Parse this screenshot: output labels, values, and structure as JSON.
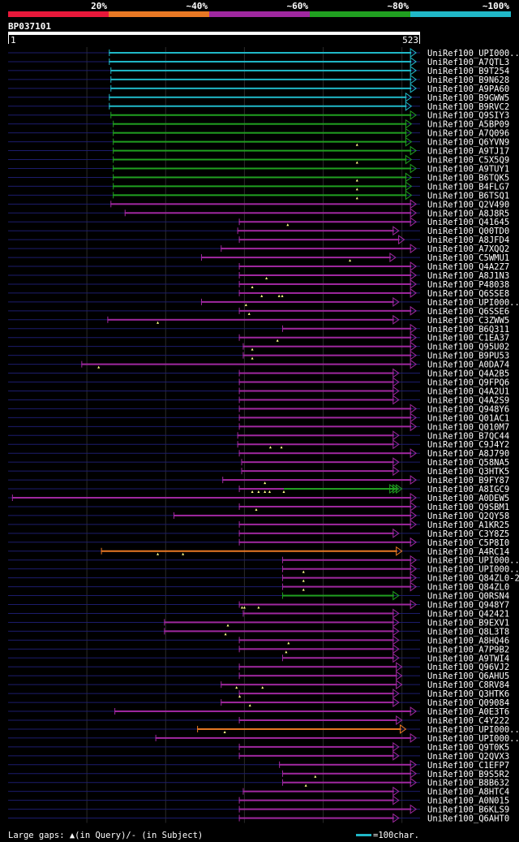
{
  "legend": {
    "bands": [
      {
        "label": "20%",
        "color": "#e8183a"
      },
      {
        "label": "~40%",
        "color": "#e87824"
      },
      {
        "label": "~60%",
        "color": "#a028a0"
      },
      {
        "label": "~80%",
        "color": "#20a020"
      },
      {
        "label": "~100%",
        "color": "#20b8c8"
      }
    ]
  },
  "query": {
    "id": "BP037101",
    "start": "1",
    "end": "523",
    "length": 523
  },
  "colors": {
    "cyan": "#20b8c8",
    "green": "#20a020",
    "purple": "#a028a0",
    "orange": "#e87824",
    "navy": "#1c1c6c",
    "grid": "#2a2a2a",
    "gapMark": "#ffff88"
  },
  "footer": {
    "gaps_text": "Large gaps: ▲(in Query)/- (in Subject)",
    "scale_text": "=100char."
  },
  "hits": [
    {
      "label": "UniRef100_UPI000..",
      "color": "cyan",
      "start": 128,
      "end": 518,
      "gaps": []
    },
    {
      "label": "UniRef100_A7QTL3",
      "color": "cyan",
      "start": 128,
      "end": 518,
      "gaps": []
    },
    {
      "label": "UniRef100_B9T254",
      "color": "cyan",
      "start": 130,
      "end": 518,
      "gaps": []
    },
    {
      "label": "UniRef100_B9N628",
      "color": "cyan",
      "start": 130,
      "end": 518,
      "gaps": []
    },
    {
      "label": "UniRef100_A9PA60",
      "color": "cyan",
      "start": 130,
      "end": 518,
      "gaps": []
    },
    {
      "label": "UniRef100_B9GWW5",
      "color": "cyan",
      "start": 128,
      "end": 512,
      "gaps": []
    },
    {
      "label": "UniRef100_B9RVC2",
      "color": "cyan",
      "start": 128,
      "end": 512,
      "gaps": []
    },
    {
      "label": "UniRef100_Q9SIY3",
      "color": "green",
      "start": 130,
      "end": 518,
      "gaps": []
    },
    {
      "label": "UniRef100_A5BP09",
      "color": "green",
      "start": 133,
      "end": 512,
      "gaps": []
    },
    {
      "label": "UniRef100_A7Q096",
      "color": "green",
      "start": 133,
      "end": 512,
      "gaps": []
    },
    {
      "label": "UniRef100_Q6YVN9",
      "color": "green",
      "start": 133,
      "end": 512,
      "gaps": [
        443
      ]
    },
    {
      "label": "UniRef100_A9TJ17",
      "color": "green",
      "start": 133,
      "end": 518,
      "gaps": []
    },
    {
      "label": "UniRef100_C5X5Q9",
      "color": "green",
      "start": 133,
      "end": 512,
      "gaps": [
        443
      ]
    },
    {
      "label": "UniRef100_A9TUY1",
      "color": "green",
      "start": 133,
      "end": 518,
      "gaps": []
    },
    {
      "label": "UniRef100_B6TQK5",
      "color": "green",
      "start": 133,
      "end": 512,
      "gaps": [
        443
      ]
    },
    {
      "label": "UniRef100_B4FLG7",
      "color": "green",
      "start": 133,
      "end": 512,
      "gaps": [
        443
      ]
    },
    {
      "label": "UniRef100_B6TSQ1",
      "color": "green",
      "start": 133,
      "end": 512,
      "gaps": [
        443
      ]
    },
    {
      "label": "UniRef100_Q2V490",
      "color": "purple",
      "start": 130,
      "end": 518,
      "gaps": []
    },
    {
      "label": "UniRef100_A8J8R5",
      "color": "purple",
      "start": 148,
      "end": 518,
      "gaps": []
    },
    {
      "label": "UniRef100_Q41645",
      "color": "purple",
      "start": 293,
      "end": 518,
      "gaps": [
        355
      ]
    },
    {
      "label": "UniRef100_Q00TD0",
      "color": "purple",
      "start": 291,
      "end": 496,
      "gaps": []
    },
    {
      "label": "UniRef100_A8JFD4",
      "color": "purple",
      "start": 293,
      "end": 503,
      "gaps": []
    },
    {
      "label": "UniRef100_A7XQQ2",
      "color": "purple",
      "start": 270,
      "end": 518,
      "gaps": []
    },
    {
      "label": "UniRef100_C5WMU1",
      "color": "purple",
      "start": 245,
      "end": 492,
      "gaps": [
        434
      ]
    },
    {
      "label": "UniRef100_Q4A2Z7",
      "color": "purple",
      "start": 293,
      "end": 518,
      "gaps": []
    },
    {
      "label": "UniRef100_A8J1N3",
      "color": "purple",
      "start": 293,
      "end": 518,
      "gaps": [
        328
      ]
    },
    {
      "label": "UniRef100_P48038",
      "color": "purple",
      "start": 293,
      "end": 518,
      "gaps": [
        310
      ]
    },
    {
      "label": "UniRef100_Q6SSE8",
      "color": "purple",
      "start": 293,
      "end": 518,
      "gaps": [
        322,
        344,
        348
      ]
    },
    {
      "label": "UniRef100_UPI000..",
      "color": "purple",
      "start": 245,
      "end": 496,
      "gaps": [
        302
      ]
    },
    {
      "label": "UniRef100_Q6SSE6",
      "color": "purple",
      "start": 293,
      "end": 518,
      "gaps": [
        306
      ]
    },
    {
      "label": "UniRef100_C3ZWW5",
      "color": "purple",
      "start": 126,
      "end": 496,
      "gaps": [
        190
      ]
    },
    {
      "label": "UniRef100_B6Q311",
      "color": "purple",
      "start": 348,
      "end": 518,
      "gaps": []
    },
    {
      "label": "UniRef100_C1EA37",
      "color": "purple",
      "start": 293,
      "end": 518,
      "gaps": [
        342
      ]
    },
    {
      "label": "UniRef100_Q95U02",
      "color": "purple",
      "start": 298,
      "end": 518,
      "gaps": [
        310
      ]
    },
    {
      "label": "UniRef100_B9PU53",
      "color": "purple",
      "start": 298,
      "end": 518,
      "gaps": [
        310
      ]
    },
    {
      "label": "UniRef100_A0DA74",
      "color": "purple",
      "start": 93,
      "end": 518,
      "gaps": [
        115
      ]
    },
    {
      "label": "UniRef100_Q4A2B5",
      "color": "purple",
      "start": 293,
      "end": 496,
      "gaps": []
    },
    {
      "label": "UniRef100_Q9FPQ6",
      "color": "purple",
      "start": 293,
      "end": 496,
      "gaps": []
    },
    {
      "label": "UniRef100_Q4A2U1",
      "color": "purple",
      "start": 293,
      "end": 496,
      "gaps": []
    },
    {
      "label": "UniRef100_Q4A2S9",
      "color": "purple",
      "start": 293,
      "end": 496,
      "gaps": []
    },
    {
      "label": "UniRef100_Q948Y6",
      "color": "purple",
      "start": 293,
      "end": 518,
      "gaps": []
    },
    {
      "label": "UniRef100_Q01AC1",
      "color": "purple",
      "start": 293,
      "end": 518,
      "gaps": []
    },
    {
      "label": "UniRef100_Q010M7",
      "color": "purple",
      "start": 293,
      "end": 518,
      "gaps": []
    },
    {
      "label": "UniRef100_B7QC44",
      "color": "purple",
      "start": 291,
      "end": 496,
      "gaps": []
    },
    {
      "label": "UniRef100_C9J4Y2",
      "color": "purple",
      "start": 291,
      "end": 496,
      "gaps": [
        333,
        347
      ]
    },
    {
      "label": "UniRef100_A8J790",
      "color": "purple",
      "start": 293,
      "end": 518,
      "gaps": []
    },
    {
      "label": "UniRef100_Q58NA5",
      "color": "purple",
      "start": 296,
      "end": 496,
      "gaps": []
    },
    {
      "label": "UniRef100_Q3HTK5",
      "color": "purple",
      "start": 296,
      "end": 496,
      "gaps": []
    },
    {
      "label": "UniRef100_B9FY87",
      "color": "purple",
      "start": 272,
      "end": 518,
      "gaps": [
        326
      ]
    },
    {
      "label": "UniRef100_A8IGC9",
      "color": "purple",
      "start": 293,
      "end": 500,
      "gaps": [
        310,
        318,
        326,
        332,
        350
      ],
      "segments": [
        {
          "color": "green",
          "start": 350,
          "end": 500
        }
      ],
      "extraArrows": 2
    },
    {
      "label": "UniRef100_A0DEW5",
      "color": "purple",
      "start": 5,
      "end": 518,
      "gaps": []
    },
    {
      "label": "UniRef100_Q9SBM1",
      "color": "purple",
      "start": 293,
      "end": 518,
      "gaps": [
        315
      ]
    },
    {
      "label": "UniRef100_Q2QY58",
      "color": "purple",
      "start": 210,
      "end": 518,
      "gaps": []
    },
    {
      "label": "UniRef100_A1KR25",
      "color": "purple",
      "start": 293,
      "end": 518,
      "gaps": []
    },
    {
      "label": "UniRef100_C3Y8Z5",
      "color": "purple",
      "start": 293,
      "end": 496,
      "gaps": []
    },
    {
      "label": "UniRef100_C5P8I0",
      "color": "purple",
      "start": 293,
      "end": 518,
      "gaps": []
    },
    {
      "label": "UniRef100_A4RC14",
      "color": "orange",
      "start": 118,
      "end": 500,
      "gaps": [
        190,
        222
      ]
    },
    {
      "label": "UniRef100_UPI000..",
      "color": "purple",
      "start": 348,
      "end": 518,
      "gaps": []
    },
    {
      "label": "UniRef100_UPI000..",
      "color": "purple",
      "start": 348,
      "end": 518,
      "gaps": [
        375
      ]
    },
    {
      "label": "UniRef100_Q84ZL0-2",
      "color": "purple",
      "start": 348,
      "end": 518,
      "gaps": [
        375
      ]
    },
    {
      "label": "UniRef100_Q84ZL0",
      "color": "purple",
      "start": 348,
      "end": 518,
      "gaps": [
        375
      ]
    },
    {
      "label": "UniRef100_Q0RSN4",
      "color": "green",
      "start": 348,
      "end": 496,
      "gaps": []
    },
    {
      "label": "UniRef100_Q948Y7",
      "color": "purple",
      "start": 293,
      "end": 518,
      "gaps": [
        297,
        300,
        318
      ]
    },
    {
      "label": "UniRef100_Q42421",
      "color": "purple",
      "start": 298,
      "end": 496,
      "gaps": []
    },
    {
      "label": "UniRef100_B9EXV1",
      "color": "purple",
      "start": 198,
      "end": 496,
      "gaps": [
        279
      ]
    },
    {
      "label": "UniRef100_Q8L3T8",
      "color": "purple",
      "start": 198,
      "end": 496,
      "gaps": [
        276
      ]
    },
    {
      "label": "UniRef100_A8HQ46",
      "color": "purple",
      "start": 293,
      "end": 496,
      "gaps": [
        356
      ]
    },
    {
      "label": "UniRef100_A7P9B2",
      "color": "purple",
      "start": 293,
      "end": 496,
      "gaps": [
        353
      ]
    },
    {
      "label": "UniRef100_A9TWI4",
      "color": "purple",
      "start": 348,
      "end": 496,
      "gaps": []
    },
    {
      "label": "UniRef100_Q96VJ2",
      "color": "purple",
      "start": 293,
      "end": 500,
      "gaps": []
    },
    {
      "label": "UniRef100_Q6AHU5",
      "color": "purple",
      "start": 293,
      "end": 500,
      "gaps": []
    },
    {
      "label": "UniRef100_C8RV84",
      "color": "purple",
      "start": 270,
      "end": 500,
      "gaps": [
        290,
        323
      ]
    },
    {
      "label": "UniRef100_Q3HTK6",
      "color": "purple",
      "start": 293,
      "end": 496,
      "gaps": [
        294
      ]
    },
    {
      "label": "UniRef100_Q09084",
      "color": "purple",
      "start": 270,
      "end": 496,
      "gaps": [
        307
      ]
    },
    {
      "label": "UniRef100_A0E3T6",
      "color": "purple",
      "start": 135,
      "end": 518,
      "gaps": []
    },
    {
      "label": "UniRef100_C4Y222",
      "color": "purple",
      "start": 293,
      "end": 500,
      "gaps": []
    },
    {
      "label": "UniRef100_UPI000..",
      "color": "orange",
      "start": 240,
      "end": 505,
      "gaps": [
        275
      ]
    },
    {
      "label": "UniRef100_UPI000..",
      "color": "purple",
      "start": 187,
      "end": 518,
      "gaps": []
    },
    {
      "label": "UniRef100_Q9T0K5",
      "color": "purple",
      "start": 293,
      "end": 496,
      "gaps": []
    },
    {
      "label": "UniRef100_Q2QVX3",
      "color": "purple",
      "start": 293,
      "end": 496,
      "gaps": []
    },
    {
      "label": "UniRef100_C1EFP7",
      "color": "purple",
      "start": 344,
      "end": 518,
      "gaps": []
    },
    {
      "label": "UniRef100_B9S5R2",
      "color": "purple",
      "start": 348,
      "end": 518,
      "gaps": [
        390
      ]
    },
    {
      "label": "UniRef100_B8B632",
      "color": "purple",
      "start": 348,
      "end": 518,
      "gaps": [
        378
      ]
    },
    {
      "label": "UniRef100_A8HTC4",
      "color": "purple",
      "start": 298,
      "end": 496,
      "gaps": []
    },
    {
      "label": "UniRef100_A0N015",
      "color": "purple",
      "start": 293,
      "end": 496,
      "gaps": []
    },
    {
      "label": "UniRef100_B6KLS9",
      "color": "purple",
      "start": 293,
      "end": 518,
      "gaps": []
    },
    {
      "label": "UniRef100_Q6AHT0",
      "color": "purple",
      "start": 293,
      "end": 496,
      "gaps": []
    }
  ]
}
